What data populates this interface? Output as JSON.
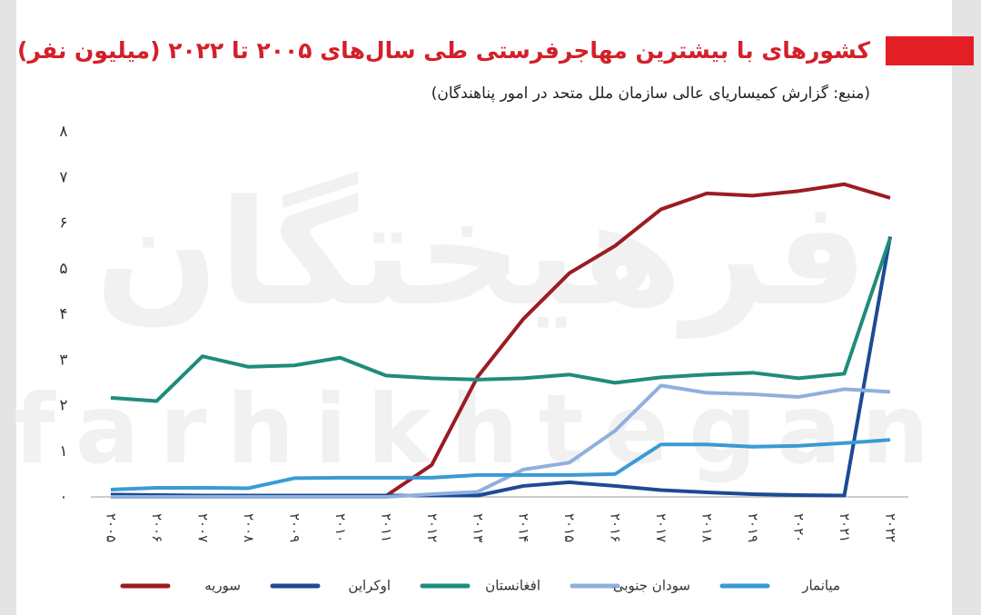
{
  "chart_data": {
    "type": "line",
    "title": "کشورهای با بیشترین مهاجرفرستی طی سال‌های ۲۰۰۵ تا ۲۰۲۲ (میلیون نفر)",
    "subtitle": "(منبع: گزارش کمیساریای عالی سازمان ملل متحد در امور پناهندگان)",
    "watermark": [
      "فرهیختگان",
      "farhikhtegan"
    ],
    "categories": [
      "۲۰۰۵",
      "۲۰۰۶",
      "۲۰۰۷",
      "۲۰۰۸",
      "۲۰۰۹",
      "۲۰۱۰",
      "۲۰۱۱",
      "۲۰۱۲",
      "۲۰۱۳",
      "۲۰۱۴",
      "۲۰۱۵",
      "۲۰۱۶",
      "۲۰۱۷",
      "۲۰۱۸",
      "۲۰۱۹",
      "۲۰۲۰",
      "۲۰۲۱",
      "۲۰۲۲"
    ],
    "series": [
      {
        "name": "سوریه",
        "color": "#9b1c22",
        "values": [
          0.02,
          0.02,
          0.02,
          0.02,
          0.02,
          0.02,
          0.02,
          0.7,
          2.63,
          3.9,
          4.9,
          5.5,
          6.3,
          6.65,
          6.6,
          6.7,
          6.85,
          6.55
        ]
      },
      {
        "name": "اوکراین",
        "color": "#1d4a94",
        "values": [
          0.05,
          0.04,
          0.03,
          0.03,
          0.03,
          0.03,
          0.03,
          0.03,
          0.03,
          0.24,
          0.32,
          0.24,
          0.15,
          0.1,
          0.06,
          0.04,
          0.03,
          5.7
        ]
      },
      {
        "name": "افغانستان",
        "color": "#1f8c7c",
        "values": [
          2.17,
          2.1,
          3.08,
          2.85,
          2.88,
          3.05,
          2.66,
          2.6,
          2.57,
          2.6,
          2.68,
          2.5,
          2.62,
          2.68,
          2.72,
          2.6,
          2.7,
          5.67
        ]
      },
      {
        "name": "سودان جنوبی",
        "color": "#8fb0dd",
        "values": [
          0,
          0,
          0,
          0,
          0,
          0,
          0,
          0.06,
          0.11,
          0.6,
          0.75,
          1.45,
          2.44,
          2.28,
          2.25,
          2.19,
          2.36,
          2.3
        ]
      },
      {
        "name": "میانمار",
        "color": "#3a9ad6",
        "values": [
          0.16,
          0.2,
          0.2,
          0.19,
          0.41,
          0.42,
          0.42,
          0.42,
          0.48,
          0.48,
          0.48,
          0.5,
          1.15,
          1.15,
          1.1,
          1.12,
          1.18,
          1.25
        ]
      }
    ],
    "ylim": [
      0,
      8
    ],
    "yticks": [
      {
        "value": 0,
        "label": "۰"
      },
      {
        "value": 1,
        "label": "۱"
      },
      {
        "value": 2,
        "label": "۲"
      },
      {
        "value": 3,
        "label": "۳"
      },
      {
        "value": 4,
        "label": "۴"
      },
      {
        "value": 5,
        "label": "۵"
      },
      {
        "value": 6,
        "label": "۶"
      },
      {
        "value": 7,
        "label": "۷"
      },
      {
        "value": 8,
        "label": "۸"
      }
    ],
    "grid": false
  }
}
